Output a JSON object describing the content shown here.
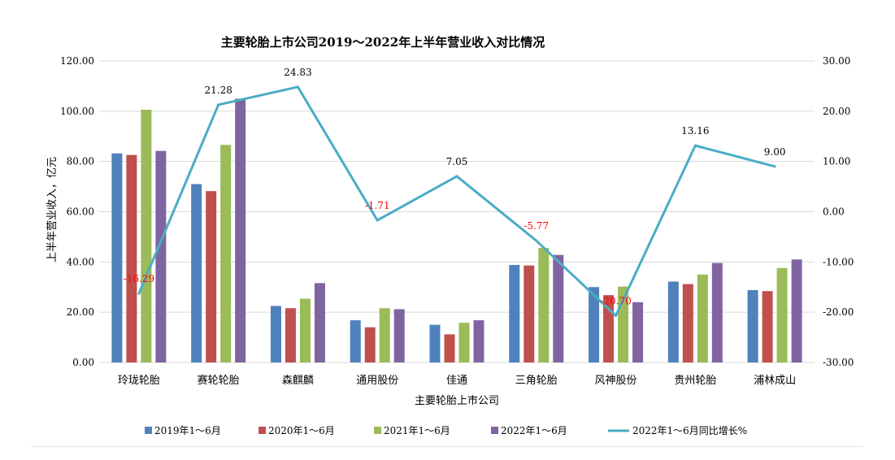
{
  "chart_data": {
    "type": "bar+line",
    "title": "主要轮胎上市公司2019～2022年上半年营业收入对比情况",
    "xlabel": "主要轮胎上市公司",
    "ylabel": "上半年营业收入，亿元",
    "ylim": [
      0,
      120
    ],
    "y2lim": [
      -30,
      30
    ],
    "y_ticks": [
      "0.00",
      "20.00",
      "40.00",
      "60.00",
      "80.00",
      "100.00",
      "120.00"
    ],
    "y2_ticks": [
      "-30.00",
      "-20.00",
      "-10.00",
      "0.00",
      "10.00",
      "20.00",
      "30.00"
    ],
    "grid": true,
    "legend_position": "bottom",
    "categories": [
      "玲珑轮胎",
      "赛轮轮胎",
      "森麒麟",
      "通用股份",
      "佳通",
      "三角轮胎",
      "风神股份",
      "贵州轮胎",
      "浦林成山"
    ],
    "series": [
      {
        "name": "2019年1～6月",
        "type": "bar",
        "axis": "left",
        "color": "#4f81bd",
        "values": [
          83.2,
          71.0,
          22.5,
          16.8,
          15.0,
          38.8,
          30.0,
          32.2,
          28.8
        ]
      },
      {
        "name": "2020年1～6月",
        "type": "bar",
        "axis": "left",
        "color": "#c0504d",
        "values": [
          82.6,
          68.2,
          21.6,
          14.0,
          11.2,
          38.6,
          26.8,
          31.2,
          28.4
        ]
      },
      {
        "name": "2021年1～6月",
        "type": "bar",
        "axis": "left",
        "color": "#9bbb59",
        "values": [
          100.6,
          86.6,
          25.4,
          21.6,
          15.8,
          45.6,
          30.2,
          35.0,
          37.6
        ]
      },
      {
        "name": "2022年1～6月",
        "type": "bar",
        "axis": "left",
        "color": "#8064a2",
        "values": [
          84.2,
          105.0,
          31.6,
          21.2,
          16.8,
          42.8,
          24.0,
          39.6,
          41.0
        ]
      },
      {
        "name": "2022年1～6月同比增长%",
        "type": "line",
        "axis": "right",
        "color": "#4bacc6",
        "values": [
          -16.29,
          21.28,
          24.83,
          -1.71,
          7.05,
          -5.77,
          -20.7,
          13.16,
          9.0
        ],
        "labels": [
          "-16.29",
          "21.28",
          "24.83",
          "-1.71",
          "7.05",
          "-5.77",
          "-20.70",
          "13.16",
          "9.00"
        ],
        "label_colors": [
          "#ff0000",
          "#000000",
          "#000000",
          "#ff0000",
          "#000000",
          "#ff0000",
          "#ff0000",
          "#000000",
          "#000000"
        ]
      }
    ]
  }
}
